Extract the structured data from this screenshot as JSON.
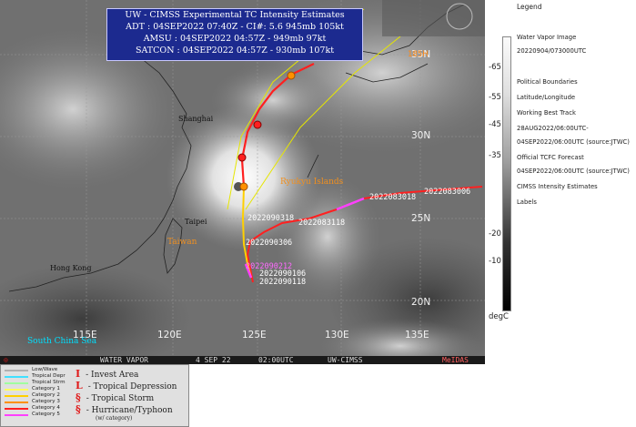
{
  "header": {
    "line1": "UW - CIMSS Experimental TC Intensity Estimates",
    "line2": "ADT : 04SEP2022 07:40Z  -  CI#: 5.6  945mb  105kt",
    "line3": "AMSU : 04SEP2022 04:57Z  -  949mb   97kt",
    "line4": "SATCON : 04SEP2022 04:57Z  -  930mb   107kt"
  },
  "grid_labels": {
    "lat_35": "35N",
    "lat_30": "30N",
    "lat_25": "25N",
    "lat_20": "20N",
    "lon_115": "115E",
    "lon_120": "120E",
    "lon_125": "125E",
    "lon_130": "130E",
    "lon_135": "135E"
  },
  "places": {
    "shanghai": "Shanghai",
    "taipei": "Taipei",
    "taiwan": "Taiwan",
    "hong_kong": "Hong Kong",
    "ryukyu": "Ryukyu Islands",
    "south_china_sea": "South China Sea"
  },
  "track_labels": {
    "t1": "2022083018",
    "t2": "2022083006",
    "t3": "2022083118",
    "t4": "2022090318",
    "t5": "2022090306",
    "t6": "2022090212",
    "t7": "2022090106",
    "t8": "2022090118"
  },
  "footer": {
    "left_mark": "⊙",
    "product": "WATER VAPOR",
    "date": "4 SEP 22",
    "time": "02:00UTC",
    "source": "UW-CIMSS",
    "sat": "MeIDAS"
  },
  "colorbar": {
    "unit": "degC",
    "ticks": [
      "-65",
      "-55",
      "-45",
      "-35",
      "-20",
      "-10"
    ]
  },
  "legend": {
    "title": "Legend",
    "items": [
      "Water Vapor Image",
      "20220904/073000UTC",
      "Political Boundaries",
      "Latitude/Longitude",
      "Working Best Track",
      "28AUG2022/06:00UTC-",
      "04SEP2022/06:00UTC   (source:JTWC)",
      "Official TCFC Forecast",
      "04SEP2022/06:00UTC   (source:JTWC)",
      "CIMSS Intensity Estimates",
      "Labels"
    ]
  },
  "categories": [
    {
      "label": "Low/Wave",
      "color": "#b0b0b0"
    },
    {
      "label": "Tropical Depr",
      "color": "#40e0ff"
    },
    {
      "label": "Tropical Strm",
      "color": "#a0ffa0"
    },
    {
      "label": "Category 1",
      "color": "#ffff60"
    },
    {
      "label": "Category 2",
      "color": "#ffd000"
    },
    {
      "label": "Category 3",
      "color": "#ff9000"
    },
    {
      "label": "Category 4",
      "color": "#ff2020"
    },
    {
      "label": "Category 5",
      "color": "#ff40ff"
    }
  ],
  "symbols": [
    {
      "sym": "I",
      "label": "- Invest Area"
    },
    {
      "sym": "L",
      "label": "- Tropical Depression"
    },
    {
      "sym": "§",
      "label": "- Tropical Storm"
    },
    {
      "sym": "§",
      "label": "- Hurricane/Typhoon"
    },
    {
      "sym": "",
      "label": "(w/ category)"
    }
  ]
}
